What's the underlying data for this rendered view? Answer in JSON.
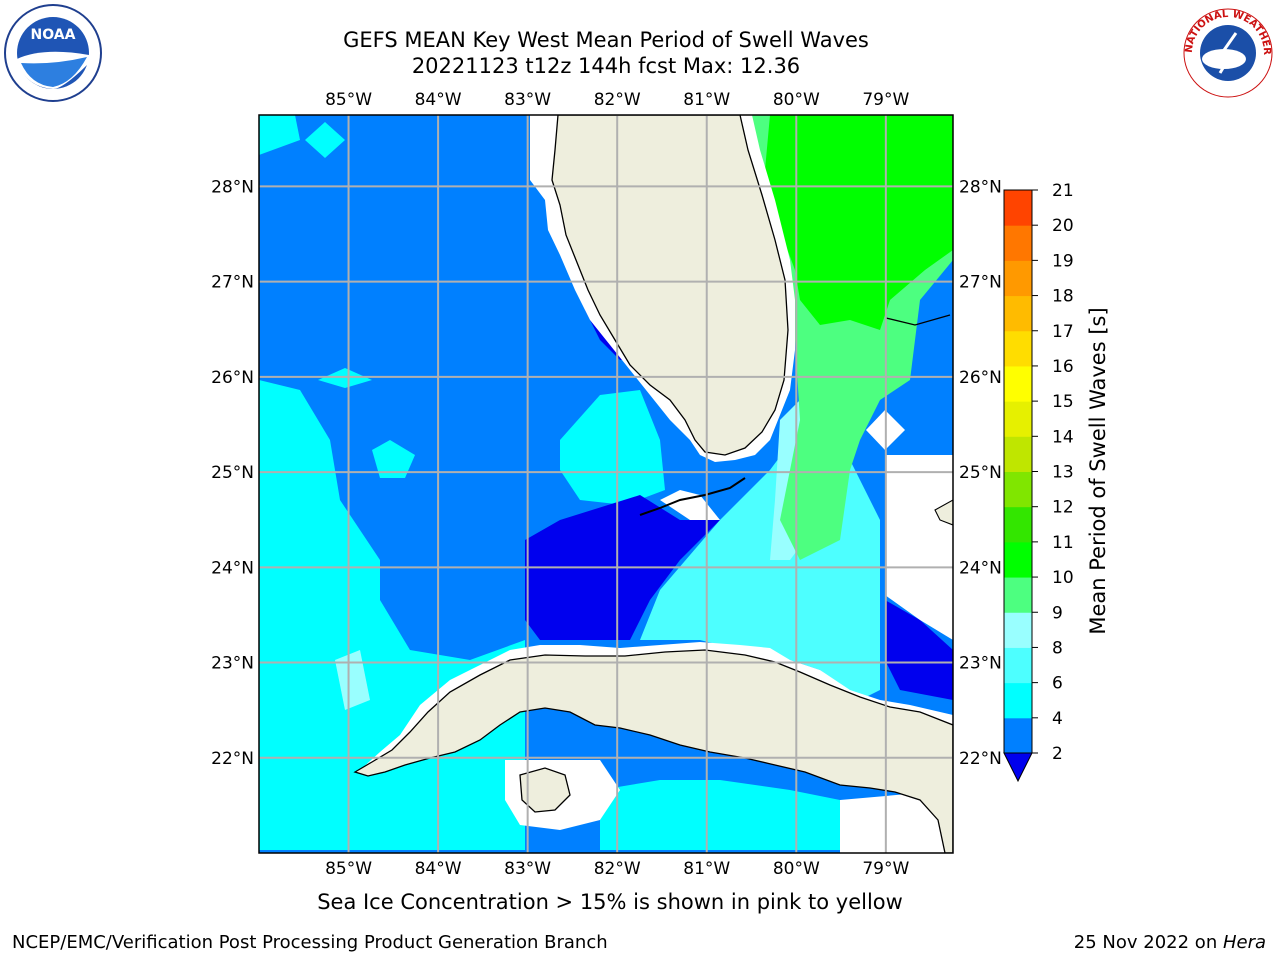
{
  "title": {
    "line1": "GEFS MEAN Key West Mean Period of Swell Waves",
    "line2": "20221123 t12z 144h fcst   Max: 12.36"
  },
  "colors": {
    "ocean_deep": "#0000ee",
    "ocean_blue": "#0080ff",
    "ocean_cyan": "#00ffff",
    "ocean_aqua": "#4dffff",
    "ocean_pale": "#99ffff",
    "green_light": "#4dff80",
    "green": "#00ff00",
    "land": "#eeeedd",
    "grid": "#b0b0b0"
  },
  "map": {
    "lon_labels_top": [
      "85°W",
      "84°W",
      "83°W",
      "82°W",
      "81°W",
      "80°W",
      "79°W"
    ],
    "lon_labels_bottom": [
      "85°W",
      "84°W",
      "83°W",
      "82°W",
      "81°W",
      "80°W",
      "79°W"
    ],
    "lat_labels_left": [
      "28°N",
      "27°N",
      "26°N",
      "25°N",
      "24°N",
      "23°N",
      "22°N"
    ],
    "lat_labels_right": [
      "28°N",
      "27°N",
      "26°N",
      "25°N",
      "24°N",
      "23°N",
      "22°N"
    ],
    "lons": [
      -85,
      -84,
      -83,
      -82,
      -81,
      -80,
      -79
    ],
    "lats": [
      28,
      27,
      26,
      25,
      24,
      23,
      22
    ],
    "lon_range": [
      -86.0,
      -78.25
    ],
    "lat_range": [
      21.0,
      28.75
    ],
    "max_value": 12.36
  },
  "colorbar": {
    "title": "Mean Period of Swell Waves [s]",
    "levels": [
      "2",
      "4",
      "6",
      "8",
      "9",
      "10",
      "11",
      "12",
      "13",
      "14",
      "15",
      "16",
      "17",
      "18",
      "19",
      "20",
      "21"
    ],
    "colors": [
      "#0080ff",
      "#00ffff",
      "#4dffff",
      "#99ffff",
      "#4dff80",
      "#00ff00",
      "#33e600",
      "#80e600",
      "#bfe600",
      "#e6f000",
      "#ffff00",
      "#ffdd00",
      "#ffbb00",
      "#ff9900",
      "#ff7700",
      "#ff4400"
    ],
    "under_color": "#0000ee",
    "extend": "min"
  },
  "footnote": "Sea Ice Concentration > 15% is shown in pink to yellow",
  "footer": {
    "left": "NCEP/EMC/Verification Post Processing Product Generation Branch",
    "right_prefix": "25 Nov 2022 on ",
    "right_host": "Hera"
  },
  "logos": {
    "noaa": "NOAA",
    "nws_ring": "NATIONAL WEATHER SERVICE"
  }
}
